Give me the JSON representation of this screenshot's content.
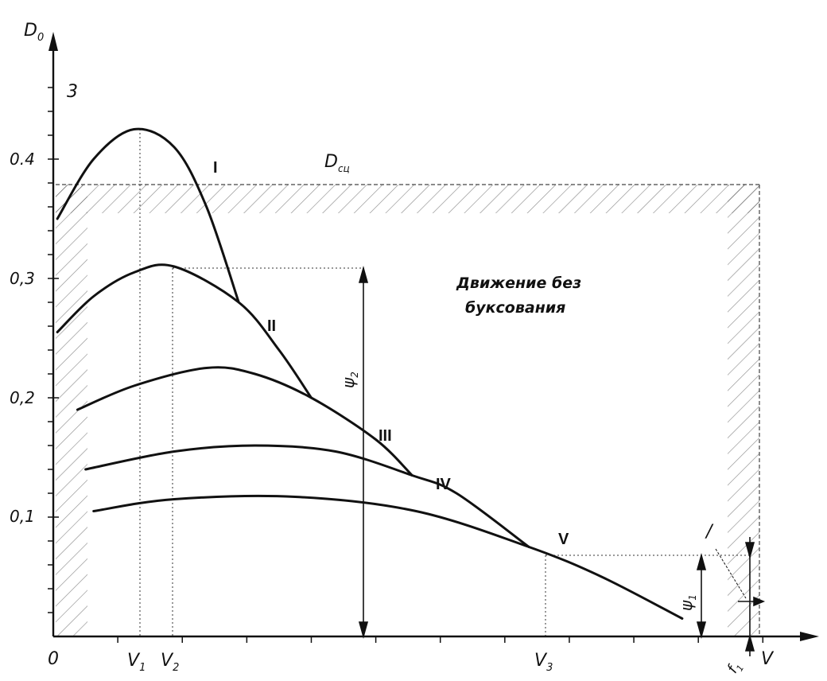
{
  "chart_data": {
    "type": "line",
    "axes": {
      "y_label": "D",
      "y_label_sub": "0",
      "x_label": "V",
      "origin": "0",
      "y_ticks": [
        "0,1",
        "0,2",
        "0,3",
        "0.4"
      ],
      "x_ticks": [
        {
          "main": "V",
          "sub": "1"
        },
        {
          "main": "V",
          "sub": "2"
        },
        {
          "main": "V",
          "sub": "3"
        }
      ]
    },
    "labels": {
      "corner_number": "3",
      "top_level": {
        "main": "D",
        "sub": "сц"
      },
      "region": [
        "Движение без",
        "буксования"
      ],
      "psi2": {
        "main": "ψ",
        "sub": "2"
      },
      "psi1": {
        "main": "ψ",
        "sub": "1"
      },
      "f1": {
        "main": "f",
        "sub": "1"
      },
      "pointer": "/"
    },
    "series": [
      {
        "name": "I",
        "x": [
          0.05,
          0.5,
          1.0,
          1.5,
          1.9,
          2.3
        ],
        "y": [
          0.35,
          0.4,
          0.425,
          0.41,
          0.36,
          0.28
        ]
      },
      {
        "name": "II",
        "x": [
          0.05,
          0.5,
          1.0,
          1.5,
          2.3,
          2.8,
          3.2
        ],
        "y": [
          0.255,
          0.285,
          0.305,
          0.31,
          0.28,
          0.24,
          0.2
        ]
      },
      {
        "name": "III",
        "x": [
          0.3,
          1.0,
          1.9,
          2.5,
          3.2,
          4.0,
          4.45
        ],
        "y": [
          0.19,
          0.21,
          0.225,
          0.22,
          0.2,
          0.165,
          0.135
        ]
      },
      {
        "name": "IV",
        "x": [
          0.4,
          1.5,
          2.5,
          3.5,
          4.45,
          5.0,
          5.9
        ],
        "y": [
          0.14,
          0.155,
          0.16,
          0.155,
          0.135,
          0.12,
          0.075
        ]
      },
      {
        "name": "V",
        "x": [
          0.5,
          1.5,
          3.0,
          4.5,
          5.9,
          6.8,
          7.8
        ],
        "y": [
          0.105,
          0.115,
          0.117,
          0.105,
          0.075,
          0.05,
          0.015
        ]
      }
    ],
    "adhesion_limit_Dsc": 0.38,
    "xlim": [
      0,
      9.3
    ],
    "ylim": [
      0,
      0.5
    ]
  }
}
